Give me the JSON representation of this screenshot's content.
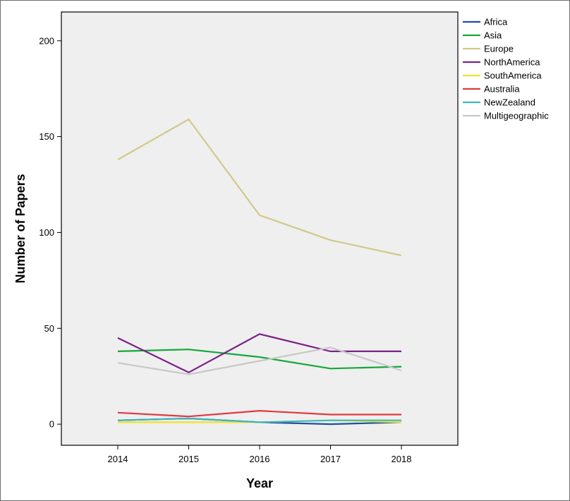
{
  "chart_data": {
    "type": "line",
    "title": "",
    "xlabel": "Year",
    "ylabel": "Number of Papers",
    "x": [
      2014,
      2015,
      2016,
      2017,
      2018
    ],
    "x_tick_labels": [
      "2014",
      "2015",
      "2016",
      "2017",
      "2018"
    ],
    "y_ticks": [
      0,
      50,
      100,
      150,
      200
    ],
    "y_tick_labels": [
      "0",
      "50",
      "100",
      "150",
      "200"
    ],
    "ylim": [
      -11,
      215
    ],
    "grid": false,
    "legend_position": "right",
    "plot_background": "#efefef",
    "series": [
      {
        "name": "Africa",
        "color": "#1f4e9c",
        "values": [
          2,
          3,
          1,
          0,
          1
        ]
      },
      {
        "name": "Asia",
        "color": "#14a83b",
        "values": [
          38,
          39,
          35,
          29,
          30
        ]
      },
      {
        "name": "Europe",
        "color": "#d2c98a",
        "values": [
          138,
          159,
          109,
          96,
          88
        ]
      },
      {
        "name": "NorthAmerica",
        "color": "#7b2487",
        "values": [
          45,
          27,
          47,
          38,
          38
        ]
      },
      {
        "name": "SouthAmerica",
        "color": "#f0e22a",
        "values": [
          1,
          1,
          1,
          2,
          1
        ]
      },
      {
        "name": "Australia",
        "color": "#e03a3e",
        "values": [
          6,
          4,
          7,
          5,
          5
        ]
      },
      {
        "name": "NewZealand",
        "color": "#3fb7bf",
        "values": [
          2,
          3,
          1,
          2,
          2
        ]
      },
      {
        "name": "Multigeographic",
        "color": "#c8c8c8",
        "values": [
          32,
          26,
          33,
          40,
          28
        ]
      }
    ]
  }
}
